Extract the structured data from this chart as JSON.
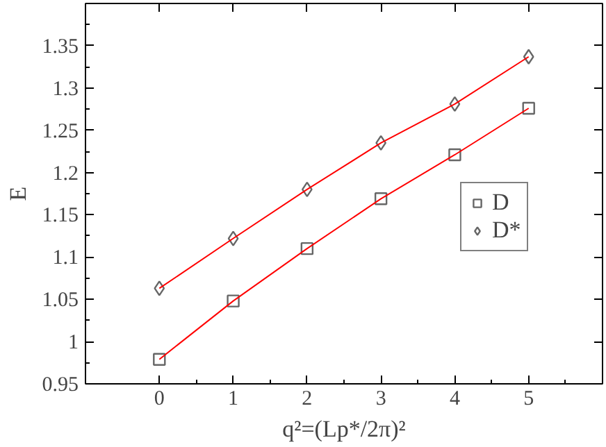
{
  "chart_data": {
    "type": "scatter",
    "xlabel": "q²=(Lp*/2π)²",
    "ylabel": "E",
    "x": [
      0,
      1,
      2,
      3,
      4,
      5
    ],
    "series": [
      {
        "name": "D",
        "color": "#666666",
        "marker": "square",
        "values": [
          0.979,
          1.048,
          1.11,
          1.169,
          1.221,
          1.276
        ]
      },
      {
        "name": "D*",
        "color": "#666666",
        "marker": "diamond",
        "values": [
          1.063,
          1.122,
          1.18,
          1.235,
          1.281,
          1.337
        ]
      },
      {
        "type": "line",
        "color": "#ff0000",
        "marker": "none",
        "values": [
          0.979,
          1.048,
          1.11,
          1.169,
          1.221,
          1.276
        ]
      },
      {
        "type": "line",
        "color": "#ff0000",
        "marker": "none",
        "values": [
          1.063,
          1.122,
          1.18,
          1.235,
          1.281,
          1.337
        ]
      }
    ],
    "xlim": [
      -1,
      6
    ],
    "ylim": [
      0.95,
      1.4
    ],
    "xticks": [
      0,
      1,
      2,
      3,
      4,
      5
    ],
    "yticks": [
      {
        "value": 0.95,
        "label": "0.95"
      },
      1,
      1.05,
      1.1,
      1.15,
      1.2,
      1.25,
      1.3,
      1.35
    ],
    "grid": false,
    "legend": "right"
  }
}
